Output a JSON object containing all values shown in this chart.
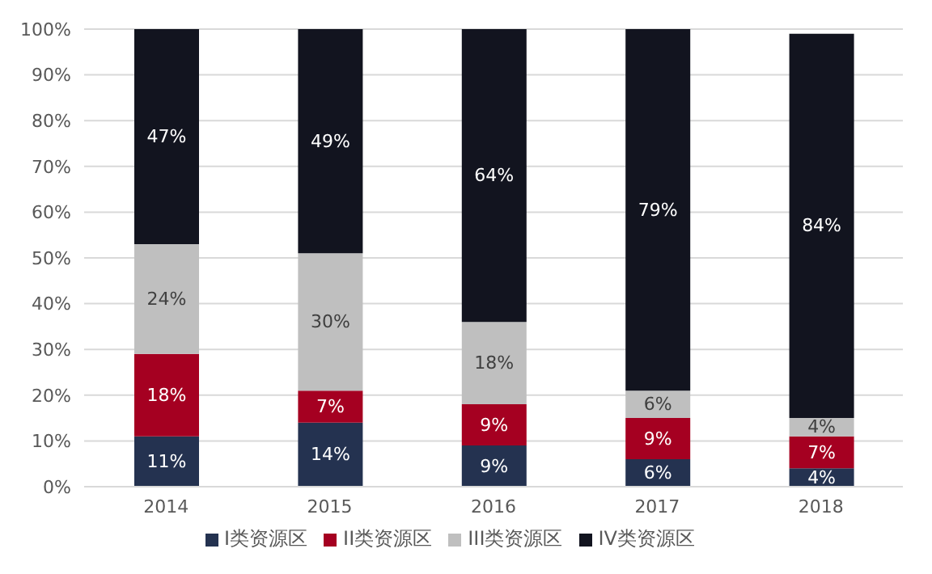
{
  "chart_data": {
    "type": "bar",
    "stacked": true,
    "categories": [
      "2014",
      "2015",
      "2016",
      "2017",
      "2018"
    ],
    "series": [
      {
        "name": "I类资源区",
        "color": "#243250",
        "values": [
          11,
          14,
          9,
          6,
          4
        ],
        "value_labels": [
          "11%",
          "14%",
          "9%",
          "6%",
          "4%"
        ]
      },
      {
        "name": "II类资源区",
        "color": "#a50021",
        "values": [
          18,
          7,
          9,
          9,
          7
        ],
        "value_labels": [
          "18%",
          "7%",
          "9%",
          "9%",
          "7%"
        ]
      },
      {
        "name": "III类资源区",
        "color": "#bfbfbf",
        "values": [
          24,
          30,
          18,
          6,
          4
        ],
        "value_labels": [
          "24%",
          "30%",
          "18%",
          "6%",
          "4%"
        ]
      },
      {
        "name": "IV类资源区",
        "color": "#12141f",
        "values": [
          47,
          49,
          64,
          79,
          84
        ],
        "value_labels": [
          "47%",
          "49%",
          "64%",
          "79%",
          "84%"
        ]
      }
    ],
    "ylim": [
      0,
      100
    ],
    "yticks": [
      {
        "value": 0,
        "label": "0%"
      },
      {
        "value": 10,
        "label": "10%"
      },
      {
        "value": 20,
        "label": "20%"
      },
      {
        "value": 30,
        "label": "30%"
      },
      {
        "value": 40,
        "label": "40%"
      },
      {
        "value": 50,
        "label": "50%"
      },
      {
        "value": 60,
        "label": "60%"
      },
      {
        "value": 70,
        "label": "70%"
      },
      {
        "value": 80,
        "label": "80%"
      },
      {
        "value": 90,
        "label": "90%"
      },
      {
        "value": 100,
        "label": "100%"
      }
    ],
    "grid": "y",
    "legend": "bottom"
  }
}
